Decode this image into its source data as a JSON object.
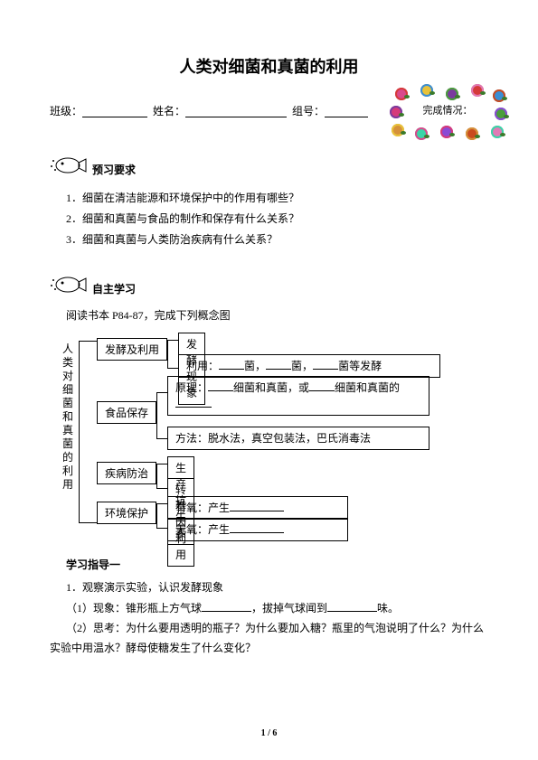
{
  "title": "人类对细菌和真菌的利用",
  "header": {
    "class_label": "班级：",
    "name_label": "姓名：",
    "group_label": "组号："
  },
  "stamp": {
    "text": "完成情况：",
    "flower_colors": [
      "#d94a8c",
      "#e8c23a",
      "#7a3b9e",
      "#d53a3a",
      "#3a8ed5",
      "#4a9e3b",
      "#e07ab5",
      "#c94a1f",
      "#8a4ad5",
      "#3ad5a8",
      "#d5913a",
      "#d53a7a"
    ]
  },
  "sections": {
    "preview": {
      "label": "预习要求",
      "questions": [
        "1．细菌在清洁能源和环境保护中的作用有哪些？",
        "2．细菌和真菌与食品的制作和保存有什么关系？",
        "3．细菌和真菌与人类防治疾病有什么关系？"
      ]
    },
    "selfstudy": {
      "label": "自主学习",
      "instruction": "阅读书本 P84-87，完成下列概念图"
    }
  },
  "concept": {
    "root": "人类对细菌和真菌的利用",
    "b1": {
      "label": "发酵及利用",
      "s1": "发酵现象",
      "s2_pre": "利用：",
      "s2_a": "菌，",
      "s2_b": "菌，",
      "s2_c": "菌等发酵"
    },
    "b2": {
      "label": "食品保存",
      "s1_pre": "原理：",
      "s1_a": "细菌和真菌，或",
      "s1_b": "细菌和真菌的",
      "s2": "方法：脱水法，真空包装法，巴氏消毒法"
    },
    "b3": {
      "label": "疾病防治",
      "s1": "生产抗生素",
      "s2": "转基因利用"
    },
    "b4": {
      "label": "环境保护",
      "s1": "有氧：产生",
      "s2": "无氧：产生"
    }
  },
  "guide": {
    "title": "学习指导一",
    "l1": "1．观察演示实验，认识发酵现象",
    "l2_a": "（1）现象：锥形瓶上方气球",
    "l2_b": "，拔掉气球闻到",
    "l2_c": "味。",
    "l3": "（2）思考：为什么要用透明的瓶子？为什么要加入糖？瓶里的气泡说明了什么？为什么",
    "l4": "实验中用温水？酵母使糖发生了什么变化？"
  },
  "page_num": "1 / 6"
}
